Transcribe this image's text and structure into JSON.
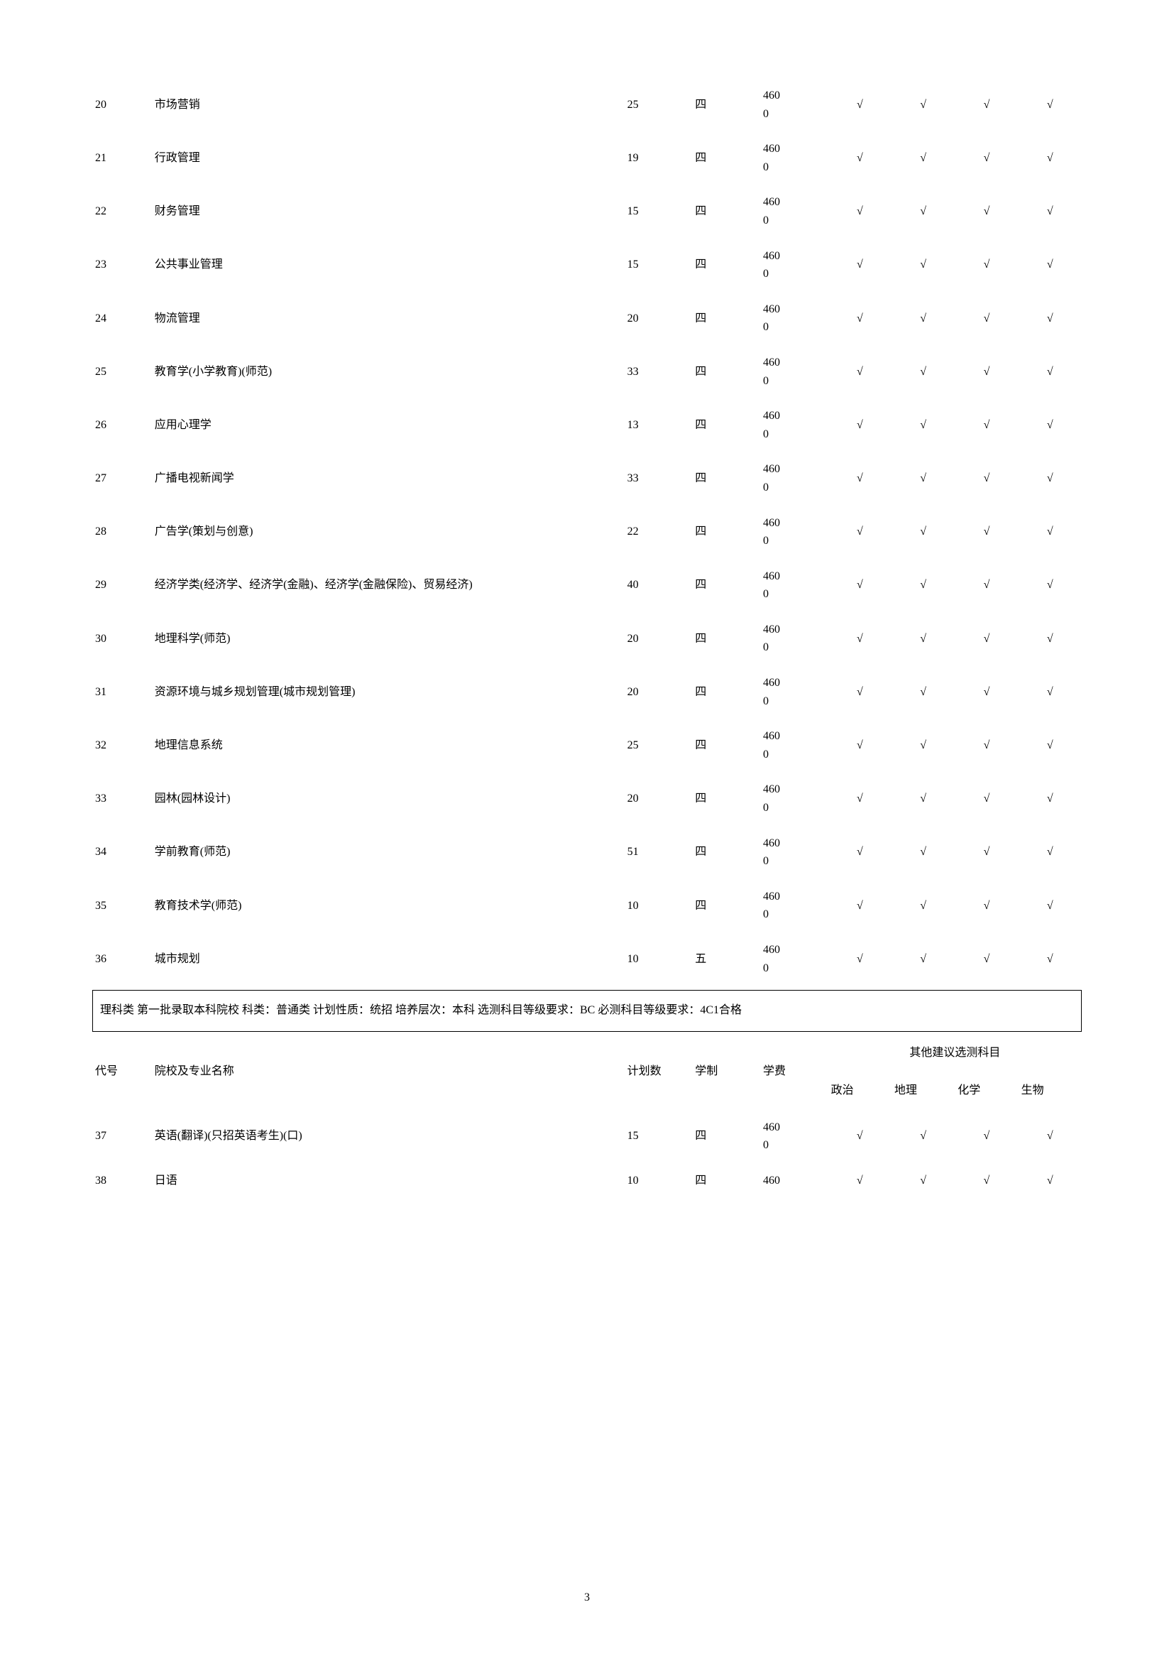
{
  "checkmark": "√",
  "rows1": [
    {
      "code": "20",
      "name": "市场营销",
      "plan": "25",
      "duration": "四",
      "fee": "4600",
      "c1": true,
      "c2": true,
      "c3": true,
      "c4": true
    },
    {
      "code": "21",
      "name": "行政管理",
      "plan": "19",
      "duration": "四",
      "fee": "4600",
      "c1": true,
      "c2": true,
      "c3": true,
      "c4": true
    },
    {
      "code": "22",
      "name": "财务管理",
      "plan": "15",
      "duration": "四",
      "fee": "4600",
      "c1": true,
      "c2": true,
      "c3": true,
      "c4": true
    },
    {
      "code": "23",
      "name": "公共事业管理",
      "plan": "15",
      "duration": "四",
      "fee": "4600",
      "c1": true,
      "c2": true,
      "c3": true,
      "c4": true
    },
    {
      "code": "24",
      "name": "物流管理",
      "plan": "20",
      "duration": "四",
      "fee": "4600",
      "c1": true,
      "c2": true,
      "c3": true,
      "c4": true
    },
    {
      "code": "25",
      "name": "教育学(小学教育)(师范)",
      "plan": "33",
      "duration": "四",
      "fee": "4600",
      "c1": true,
      "c2": true,
      "c3": true,
      "c4": true
    },
    {
      "code": "26",
      "name": "应用心理学",
      "plan": "13",
      "duration": "四",
      "fee": "4600",
      "c1": true,
      "c2": true,
      "c3": true,
      "c4": true
    },
    {
      "code": "27",
      "name": "广播电视新闻学",
      "plan": "33",
      "duration": "四",
      "fee": "4600",
      "c1": true,
      "c2": true,
      "c3": true,
      "c4": true
    },
    {
      "code": "28",
      "name": "广告学(策划与创意)",
      "plan": "22",
      "duration": "四",
      "fee": "4600",
      "c1": true,
      "c2": true,
      "c3": true,
      "c4": true
    },
    {
      "code": "29",
      "name": "经济学类(经济学、经济学(金融)、经济学(金融保险)、贸易经济)",
      "plan": "40",
      "duration": "四",
      "fee": "4600",
      "c1": true,
      "c2": true,
      "c3": true,
      "c4": true
    },
    {
      "code": "30",
      "name": "地理科学(师范)",
      "plan": "20",
      "duration": "四",
      "fee": "4600",
      "c1": true,
      "c2": true,
      "c3": true,
      "c4": true
    },
    {
      "code": "31",
      "name": "资源环境与城乡规划管理(城市规划管理)",
      "plan": "20",
      "duration": "四",
      "fee": "4600",
      "c1": true,
      "c2": true,
      "c3": true,
      "c4": true
    },
    {
      "code": "32",
      "name": "地理信息系统",
      "plan": "25",
      "duration": "四",
      "fee": "4600",
      "c1": true,
      "c2": true,
      "c3": true,
      "c4": true
    },
    {
      "code": "33",
      "name": "园林(园林设计)",
      "plan": "20",
      "duration": "四",
      "fee": "4600",
      "c1": true,
      "c2": true,
      "c3": true,
      "c4": true
    },
    {
      "code": "34",
      "name": "学前教育(师范)",
      "plan": "51",
      "duration": "四",
      "fee": "4600",
      "c1": true,
      "c2": true,
      "c3": true,
      "c4": true
    },
    {
      "code": "35",
      "name": "教育技术学(师范)",
      "plan": "10",
      "duration": "四",
      "fee": "4600",
      "c1": true,
      "c2": true,
      "c3": true,
      "c4": true
    },
    {
      "code": "36",
      "name": "城市规划",
      "plan": "10",
      "duration": "五",
      "fee": "4600",
      "c1": true,
      "c2": true,
      "c3": true,
      "c4": true
    }
  ],
  "section_text": "理科类 第一批录取本科院校 科类：普通类 计划性质：统招 培养层次：本科 选测科目等级要求：BC 必测科目等级要求：4C1合格",
  "headers": {
    "code": "代号",
    "name": "院校及专业名称",
    "plan": "计划数",
    "duration": "学制",
    "fee": "学费",
    "subject_group": "其他建议选测科目",
    "s1": "政治",
    "s2": "地理",
    "s3": "化学",
    "s4": "生物"
  },
  "rows2": [
    {
      "code": "37",
      "name": "英语(翻译)(只招英语考生)(口)",
      "plan": "15",
      "duration": "四",
      "fee": "4600",
      "c1": true,
      "c2": true,
      "c3": true,
      "c4": true
    },
    {
      "code": "38",
      "name": "日语",
      "plan": "10",
      "duration": "四",
      "fee": "460",
      "c1": true,
      "c2": true,
      "c3": true,
      "c4": true
    }
  ],
  "page_number": "3"
}
